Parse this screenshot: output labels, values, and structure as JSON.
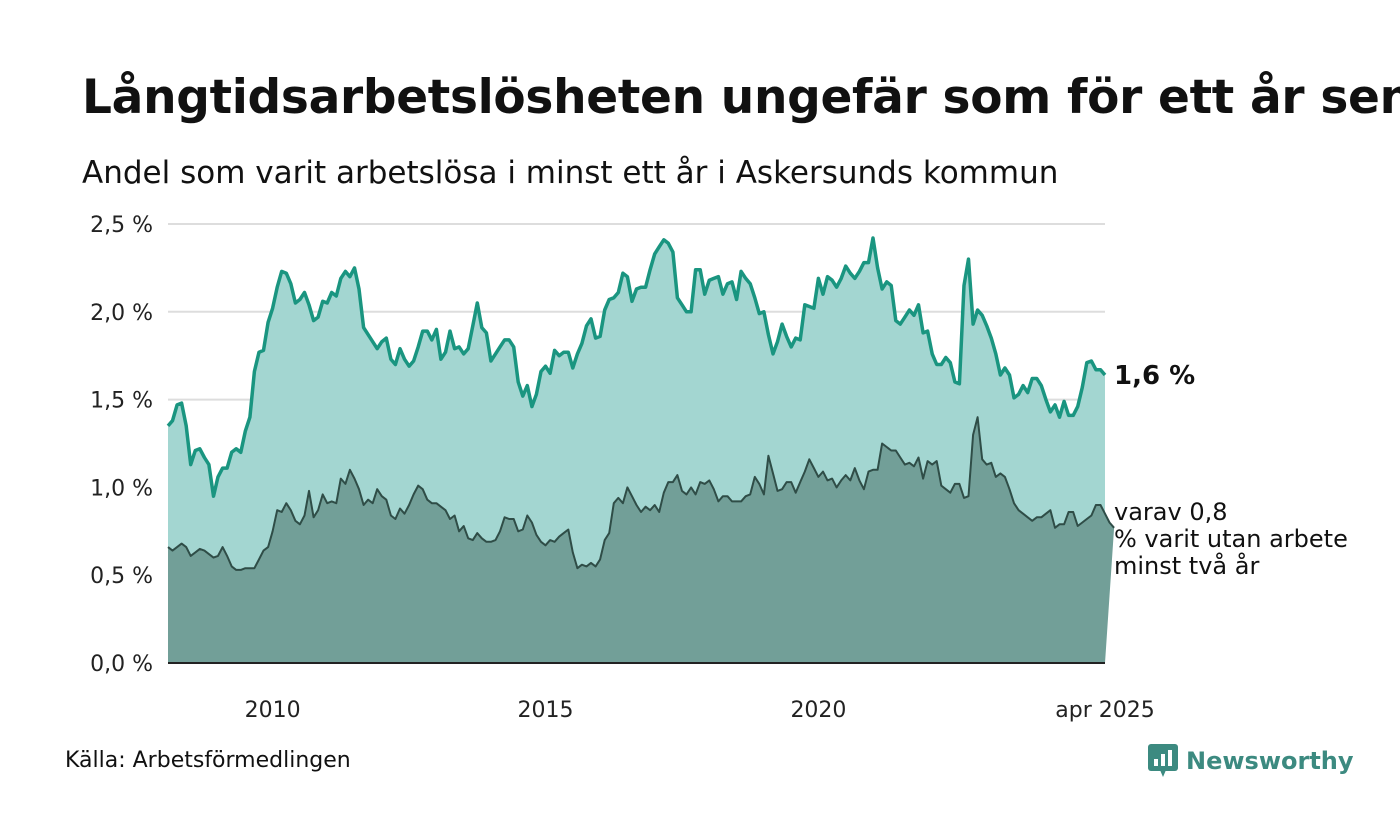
{
  "title": "Långtidsarbetslösheten ungefär som för ett år sen",
  "subtitle": "Andel som varit arbetslösa i minst ett år i Askersunds kommun",
  "source": "Källa: Arbetsförmedlingen",
  "brand": {
    "name": "Newsworthy",
    "icon": "newsworthy-logo-icon"
  },
  "colors": {
    "series1_line": "#1a9580",
    "series1_fill": "#a3d6d1",
    "series2_line": "#2f4d47",
    "series2_fill": "#729f98",
    "grid": "#dddddd",
    "axis": "#222222",
    "brand": "#3c8a80"
  },
  "chart_data": {
    "type": "area",
    "ylim": [
      0,
      2.5
    ],
    "yticks": [
      "0,0 %",
      "0,5 %",
      "1,0 %",
      "1,5 %",
      "2,0 %",
      "2,5 %"
    ],
    "xticks": [
      "2010",
      "2015",
      "2020",
      "apr 2025"
    ],
    "grid": true,
    "series": [
      {
        "label": "1,6 %",
        "values": [
          1.35,
          1.38,
          1.47,
          1.48,
          1.35,
          1.13,
          1.21,
          1.22,
          1.17,
          1.13,
          0.95,
          1.06,
          1.11,
          1.11,
          1.2,
          1.22,
          1.2,
          1.32,
          1.4,
          1.66,
          1.77,
          1.78,
          1.94,
          2.02,
          2.14,
          2.23,
          2.22,
          2.16,
          2.05,
          2.07,
          2.11,
          2.04,
          1.95,
          1.97,
          2.06,
          2.05,
          2.11,
          2.09,
          2.19,
          2.23,
          2.2,
          2.25,
          2.13,
          1.91,
          1.87,
          1.83,
          1.79,
          1.83,
          1.85,
          1.73,
          1.7,
          1.79,
          1.73,
          1.69,
          1.72,
          1.8,
          1.89,
          1.89,
          1.84,
          1.9,
          1.73,
          1.77,
          1.89,
          1.79,
          1.8,
          1.76,
          1.79,
          1.92,
          2.05,
          1.91,
          1.88,
          1.72,
          1.76,
          1.8,
          1.84,
          1.84,
          1.8,
          1.6,
          1.52,
          1.58,
          1.46,
          1.53,
          1.66,
          1.69,
          1.65,
          1.78,
          1.75,
          1.77,
          1.77,
          1.68,
          1.76,
          1.82,
          1.92,
          1.96,
          1.85,
          1.86,
          2.01,
          2.07,
          2.08,
          2.11,
          2.22,
          2.2,
          2.06,
          2.13,
          2.14,
          2.14,
          2.24,
          2.33,
          2.37,
          2.41,
          2.39,
          2.34,
          2.08,
          2.04,
          2.0,
          2.0,
          2.24,
          2.24,
          2.1,
          2.18,
          2.19,
          2.2,
          2.1,
          2.16,
          2.17,
          2.07,
          2.23,
          2.19,
          2.16,
          2.08,
          1.99,
          2.0,
          1.87,
          1.76,
          1.83,
          1.93,
          1.86,
          1.8,
          1.85,
          1.84,
          2.04,
          2.03,
          2.02,
          2.19,
          2.1,
          2.2,
          2.18,
          2.14,
          2.19,
          2.26,
          2.22,
          2.19,
          2.23,
          2.28,
          2.28,
          2.42,
          2.25,
          2.13,
          2.17,
          2.15,
          1.95,
          1.93,
          1.97,
          2.01,
          1.98,
          2.04,
          1.88,
          1.89,
          1.76,
          1.7,
          1.7,
          1.74,
          1.71,
          1.6,
          1.59,
          2.15,
          2.3,
          1.93,
          2.01,
          1.98,
          1.92,
          1.85,
          1.76,
          1.64,
          1.68,
          1.64,
          1.51,
          1.53,
          1.58,
          1.54,
          1.62,
          1.62,
          1.58,
          1.5,
          1.43,
          1.47,
          1.4,
          1.49,
          1.41,
          1.41,
          1.46,
          1.57,
          1.71,
          1.72,
          1.67,
          1.67,
          1.64
        ]
      },
      {
        "label": "varav 0,8 % varit utan arbete minst två år",
        "values": [
          0.66,
          0.64,
          0.66,
          0.68,
          0.66,
          0.61,
          0.63,
          0.65,
          0.64,
          0.62,
          0.6,
          0.61,
          0.66,
          0.61,
          0.55,
          0.53,
          0.53,
          0.54,
          0.54,
          0.54,
          0.59,
          0.64,
          0.66,
          0.75,
          0.87,
          0.86,
          0.91,
          0.87,
          0.81,
          0.79,
          0.84,
          0.98,
          0.83,
          0.87,
          0.96,
          0.91,
          0.92,
          0.91,
          1.05,
          1.02,
          1.1,
          1.05,
          0.99,
          0.9,
          0.93,
          0.91,
          0.99,
          0.95,
          0.93,
          0.84,
          0.82,
          0.88,
          0.85,
          0.9,
          0.96,
          1.01,
          0.99,
          0.93,
          0.91,
          0.91,
          0.89,
          0.87,
          0.82,
          0.84,
          0.75,
          0.78,
          0.71,
          0.7,
          0.74,
          0.71,
          0.69,
          0.69,
          0.7,
          0.75,
          0.83,
          0.82,
          0.82,
          0.75,
          0.76,
          0.84,
          0.8,
          0.73,
          0.69,
          0.67,
          0.7,
          0.69,
          0.72,
          0.74,
          0.76,
          0.63,
          0.54,
          0.56,
          0.55,
          0.57,
          0.55,
          0.59,
          0.7,
          0.74,
          0.91,
          0.94,
          0.91,
          1.0,
          0.95,
          0.9,
          0.86,
          0.89,
          0.87,
          0.9,
          0.86,
          0.97,
          1.03,
          1.03,
          1.07,
          0.98,
          0.96,
          1.0,
          0.96,
          1.03,
          1.02,
          1.04,
          0.99,
          0.92,
          0.95,
          0.95,
          0.92,
          0.92,
          0.92,
          0.95,
          0.96,
          1.06,
          1.02,
          0.96,
          1.18,
          1.08,
          0.98,
          0.99,
          1.03,
          1.03,
          0.97,
          1.03,
          1.09,
          1.16,
          1.11,
          1.06,
          1.09,
          1.04,
          1.05,
          1.0,
          1.04,
          1.07,
          1.04,
          1.11,
          1.04,
          0.99,
          1.09,
          1.1,
          1.1,
          1.25,
          1.23,
          1.21,
          1.21,
          1.17,
          1.13,
          1.14,
          1.12,
          1.17,
          1.05,
          1.15,
          1.13,
          1.15,
          1.01,
          0.99,
          0.97,
          1.02,
          1.02,
          0.94,
          0.95,
          1.3,
          1.4,
          1.16,
          1.13,
          1.14,
          1.06,
          1.08,
          1.06,
          0.99,
          0.91,
          0.87,
          0.85,
          0.83,
          0.81,
          0.83,
          0.83,
          0.85,
          0.87,
          0.77,
          0.79,
          0.79,
          0.86,
          0.86,
          0.78,
          0.8,
          0.82,
          0.84,
          0.9,
          0.9,
          0.85,
          0.8,
          0.77
        ]
      }
    ]
  }
}
